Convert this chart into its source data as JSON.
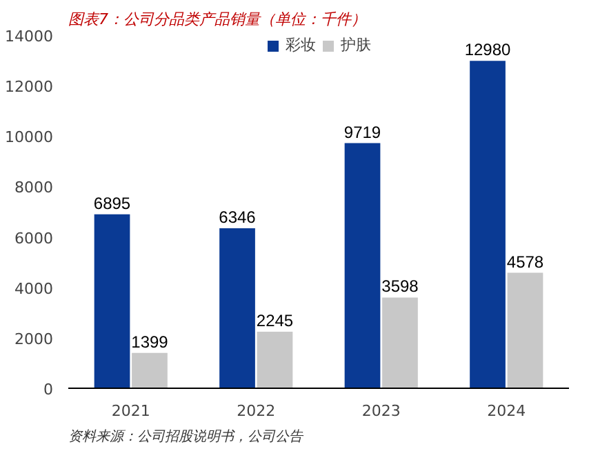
{
  "chart_data": {
    "type": "bar",
    "title": "图表7：公司分品类产品销量（单位：千件）",
    "annotations": [
      "资料来源：公司招股说明书，公司公告"
    ],
    "categories": [
      "2021",
      "2022",
      "2023",
      "2024"
    ],
    "series": [
      {
        "name": "彩妆",
        "color": "#0a3a94",
        "values": [
          6895,
          6346,
          9719,
          12980
        ]
      },
      {
        "name": "护肤",
        "color": "#c8c8c8",
        "values": [
          1399,
          2245,
          3598,
          4578
        ]
      }
    ],
    "ylim": [
      0,
      14000
    ],
    "yticks": [
      0,
      2000,
      4000,
      6000,
      8000,
      10000,
      12000,
      14000
    ],
    "grid": false,
    "legend": "top",
    "data_labels": true
  }
}
